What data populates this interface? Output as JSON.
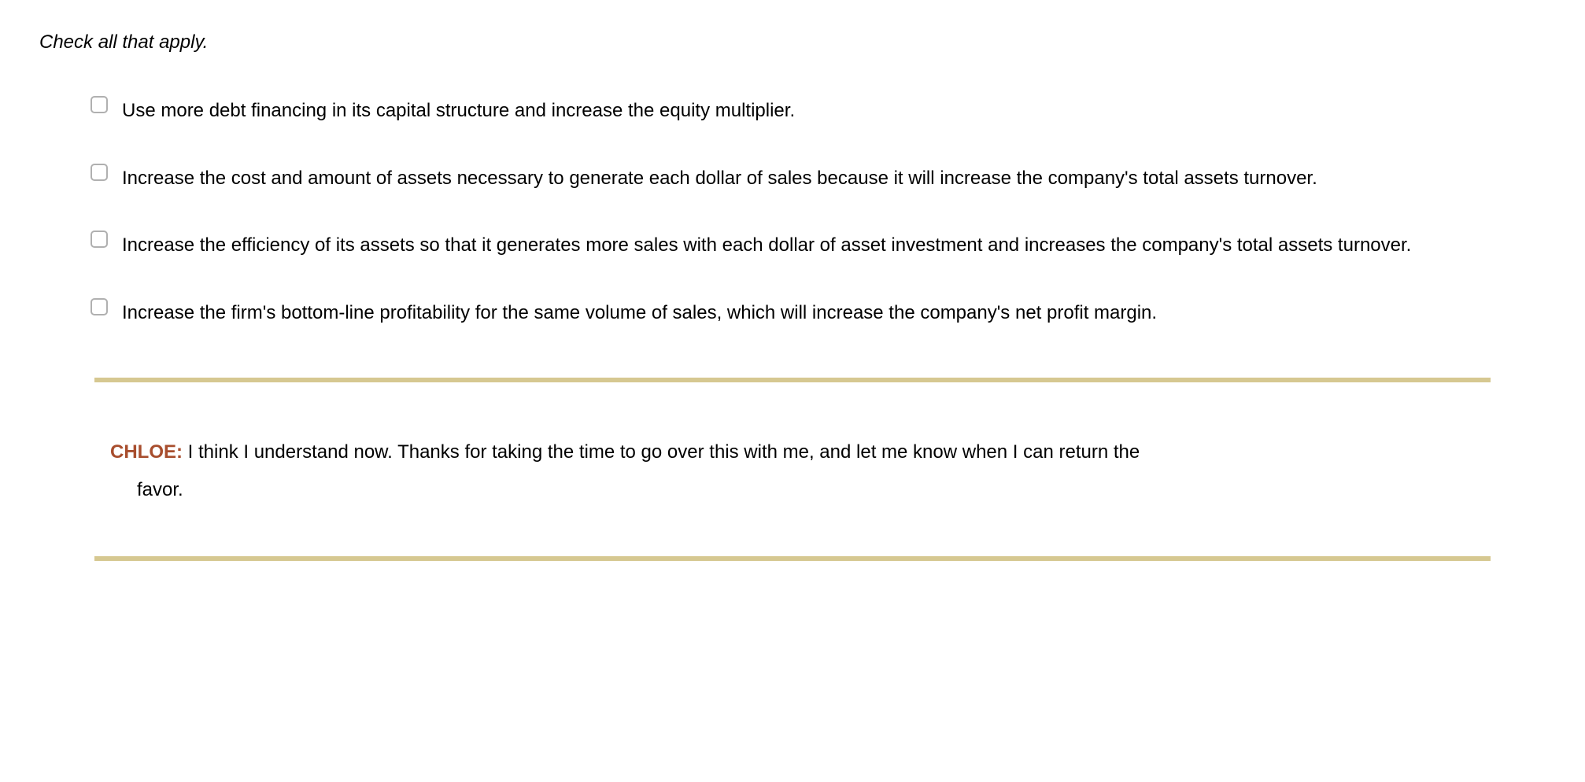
{
  "instruction": "Check all that apply.",
  "options": [
    {
      "text": "Use more debt financing in its capital structure and increase the equity multiplier."
    },
    {
      "text": "Increase the cost and amount of assets necessary to generate each dollar of sales because it will increase the company's total assets turnover."
    },
    {
      "text": "Increase the efficiency of its assets so that it generates more sales with each dollar of asset investment and increases the company's total assets turnover."
    },
    {
      "text": "Increase the firm's bottom-line profitability for the same volume of sales, which will increase the company's net profit margin."
    }
  ],
  "dialog": {
    "speaker": "CHLOE:",
    "line1": " I think I understand now. Thanks for taking the time to go over this with me, and let me know when I can return the",
    "line2": "favor."
  },
  "colors": {
    "divider": "#d6c891",
    "speaker": "#a84e2e",
    "text": "#000000",
    "checkbox_border": "#b0b0b0",
    "background": "#ffffff"
  },
  "typography": {
    "body_fontsize": 24,
    "instruction_style": "italic",
    "speaker_weight": "bold"
  }
}
